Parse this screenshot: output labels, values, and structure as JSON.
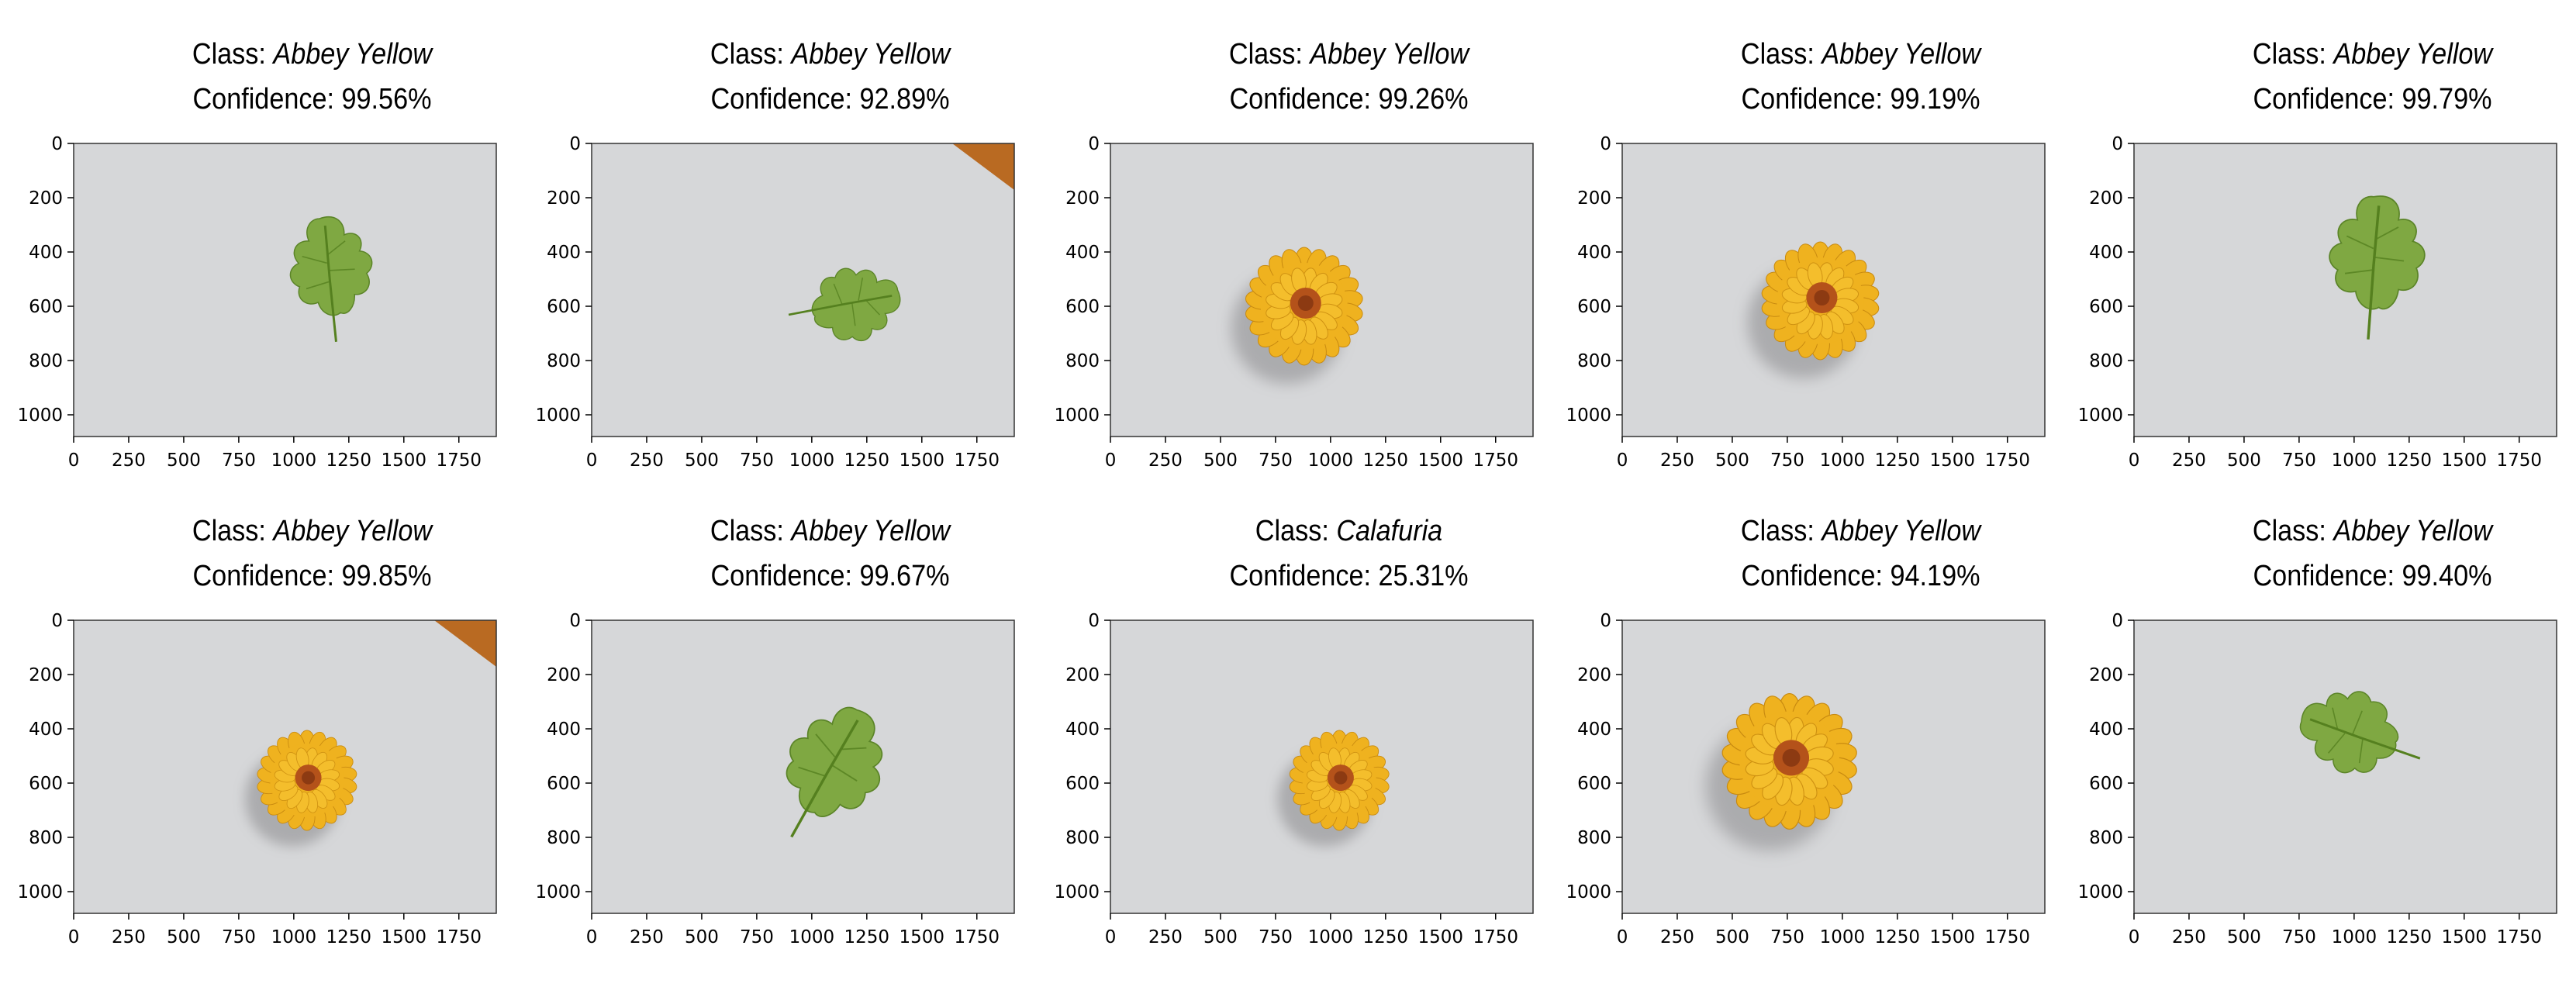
{
  "class_prefix": "Class: ",
  "confidence_prefix": "Confidence: ",
  "x_ticks": [
    "0",
    "250",
    "500",
    "750",
    "1000",
    "1250",
    "1500",
    "1750"
  ],
  "y_ticks": [
    "0",
    "200",
    "400",
    "600",
    "800",
    "1000"
  ],
  "colors": {
    "background": "#d6d7d9",
    "leaf": "#7ba63a",
    "leaf_dark": "#55801f",
    "flower": "#efb21f",
    "flower_center": "#b4521a",
    "corner_object": "#b96a22"
  },
  "panels": [
    {
      "label": "Abbey Yellow",
      "confidence": "99.56%",
      "subject": "leaf",
      "center": [
        1150,
        470
      ],
      "scale": 1.0,
      "angle": -10,
      "corner": false
    },
    {
      "label": "Abbey Yellow",
      "confidence": "92.89%",
      "subject": "leaf",
      "center": [
        1180,
        580
      ],
      "scale": 0.9,
      "angle": 75,
      "corner": true
    },
    {
      "label": "Abbey Yellow",
      "confidence": "99.26%",
      "subject": "flower",
      "center": [
        880,
        600
      ],
      "scale": 1.0,
      "angle": 0,
      "corner": false
    },
    {
      "label": "Abbey Yellow",
      "confidence": "99.19%",
      "subject": "flower",
      "center": [
        900,
        580
      ],
      "scale": 1.0,
      "angle": 0,
      "corner": false
    },
    {
      "label": "Abbey Yellow",
      "confidence": "99.79%",
      "subject": "leaf",
      "center": [
        1080,
        420
      ],
      "scale": 1.15,
      "angle": 0,
      "corner": false
    },
    {
      "label": "Abbey Yellow",
      "confidence": "99.85%",
      "subject": "flower",
      "center": [
        1060,
        590
      ],
      "scale": 0.85,
      "angle": 0,
      "corner": true
    },
    {
      "label": "Abbey Yellow",
      "confidence": "99.67%",
      "subject": "leaf",
      "center": [
        1080,
        530
      ],
      "scale": 1.15,
      "angle": 25,
      "corner": false
    },
    {
      "label": "Calafuria",
      "confidence": "25.31%",
      "subject": "flower",
      "center": [
        1040,
        590
      ],
      "scale": 0.85,
      "angle": 0,
      "corner": false
    },
    {
      "label": "Abbey Yellow",
      "confidence": "94.19%",
      "subject": "flower",
      "center": [
        760,
        520
      ],
      "scale": 1.15,
      "angle": 0,
      "corner": false
    },
    {
      "label": "Abbey Yellow",
      "confidence": "99.40%",
      "subject": "leaf",
      "center": [
        990,
        430
      ],
      "scale": 1.0,
      "angle": -75,
      "corner": false
    }
  ]
}
